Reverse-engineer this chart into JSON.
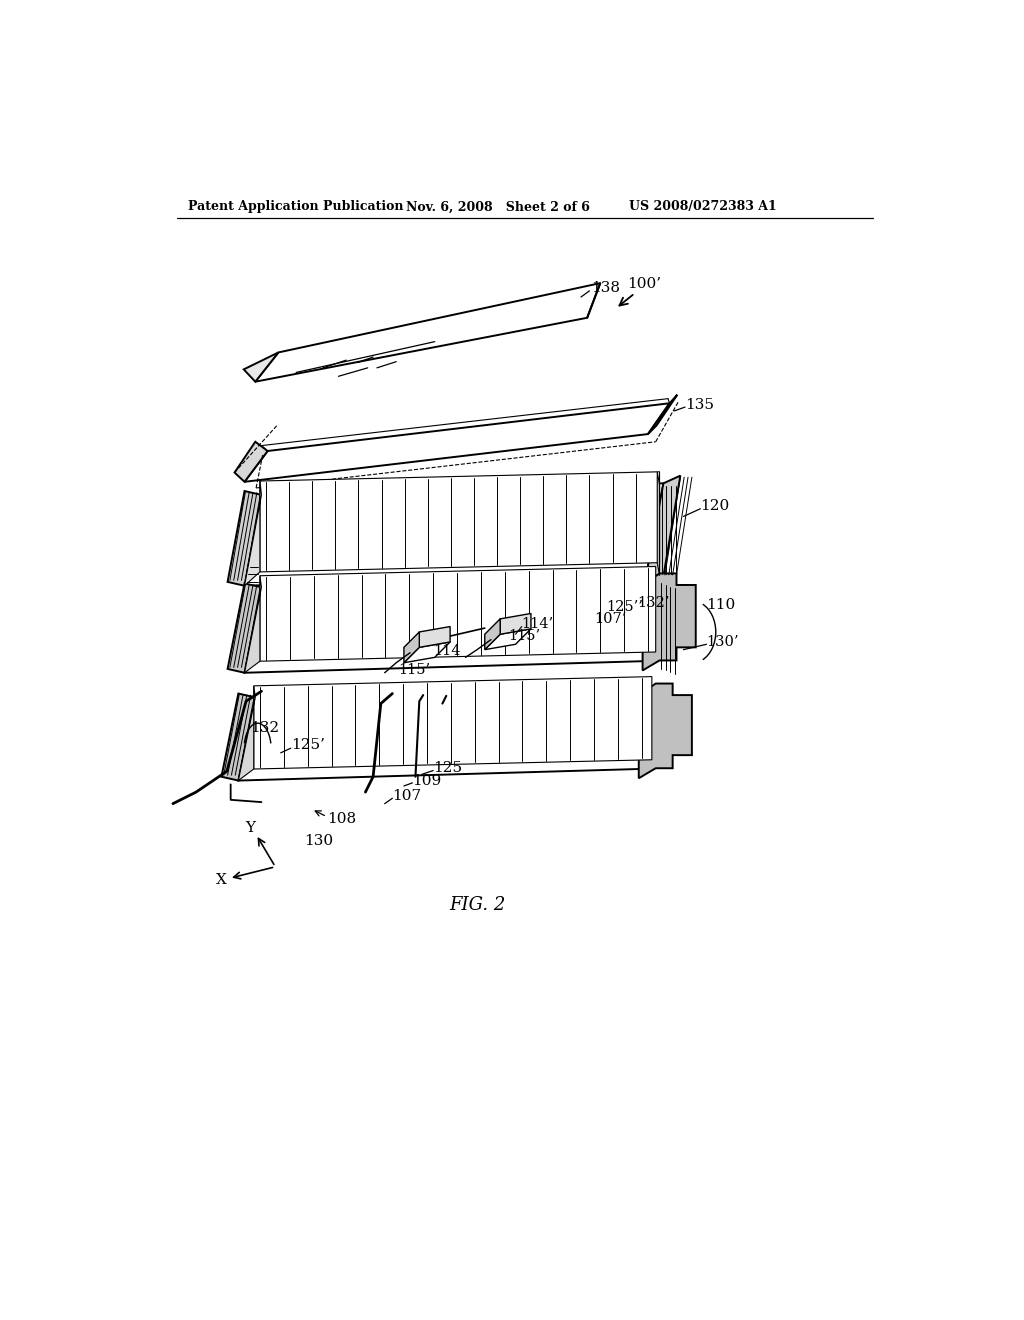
{
  "bg_color": "#ffffff",
  "header_left": "Patent Application Publication",
  "header_mid": "Nov. 6, 2008   Sheet 2 of 6",
  "header_right": "US 2008/0272383 A1",
  "fig_label": "FIG. 2",
  "lw_main": 1.4,
  "lw_thin": 0.8,
  "lw_hatch": 0.7,
  "fontsize_label": 11,
  "fontsize_header": 9,
  "fontsize_fig": 13
}
